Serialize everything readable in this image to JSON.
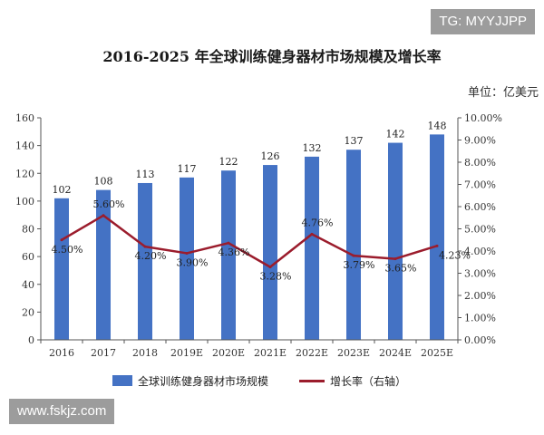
{
  "watermark_top": "TG: MYYJJPP",
  "watermark_bottom": "www.fskjz.com",
  "chart_data": {
    "type": "bar",
    "title": "2016-2025 年全球训练健身器材市场规模及增长率",
    "unit_label": "单位：亿美元",
    "categories": [
      "2016",
      "2017",
      "2018",
      "2019E",
      "2020E",
      "2021E",
      "2022E",
      "2023E",
      "2024E",
      "2025E"
    ],
    "series": [
      {
        "name": "全球训练健身器材市场规模",
        "type": "bar",
        "axis": "left",
        "color": "#4472c4",
        "values": [
          102,
          108,
          113,
          117,
          122,
          126,
          132,
          137,
          142,
          148
        ],
        "labels": [
          "102",
          "108",
          "113",
          "117",
          "122",
          "126",
          "132",
          "137",
          "142",
          "148"
        ]
      },
      {
        "name": "增长率（右轴）",
        "type": "line",
        "axis": "right",
        "color": "#9b1c2c",
        "values": [
          4.5,
          5.6,
          4.2,
          3.9,
          4.36,
          3.28,
          4.76,
          3.79,
          3.65,
          4.23
        ],
        "labels": [
          "4.50%",
          "5.60%",
          "4.20%",
          "3.90%",
          "4.36%",
          "3.28%",
          "4.76%",
          "3.79%",
          "3.65%",
          "4.23%"
        ]
      }
    ],
    "y_left": {
      "min": 0,
      "max": 160,
      "step": 20,
      "ticks": [
        "0",
        "20",
        "40",
        "60",
        "80",
        "100",
        "120",
        "140",
        "160"
      ]
    },
    "y_right": {
      "min": 0,
      "max": 10,
      "step": 1,
      "ticks": [
        "0.00%",
        "1.00%",
        "2.00%",
        "3.00%",
        "4.00%",
        "5.00%",
        "6.00%",
        "7.00%",
        "8.00%",
        "9.00%",
        "10.00%"
      ]
    },
    "legend_position": "bottom-center"
  }
}
